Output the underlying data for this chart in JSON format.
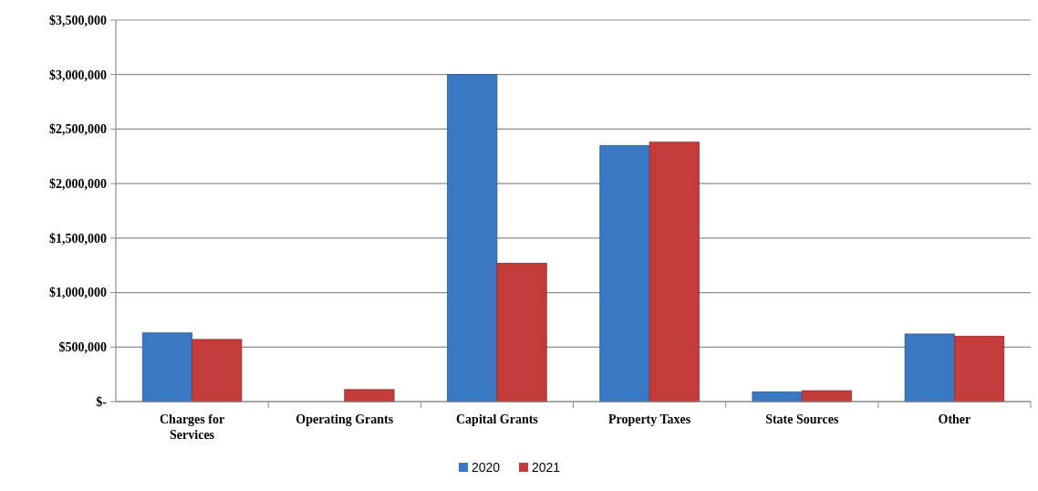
{
  "chart_data": {
    "type": "bar",
    "categories": [
      "Charges for Services",
      "Operating Grants",
      "Capital Grants",
      "Property Taxes",
      "State Sources",
      "Other"
    ],
    "series": [
      {
        "name": "2020",
        "color": "#3b78c4",
        "values": [
          630000,
          0,
          3000000,
          2350000,
          90000,
          620000
        ]
      },
      {
        "name": "2021",
        "color": "#c43c3a",
        "values": [
          570000,
          110000,
          1270000,
          2380000,
          100000,
          600000
        ]
      }
    ],
    "ylim": [
      0,
      3500000
    ],
    "yticks": [
      {
        "value": 0,
        "label": "$-"
      },
      {
        "value": 500000,
        "label": "$500,000"
      },
      {
        "value": 1000000,
        "label": "$1,000,000"
      },
      {
        "value": 1500000,
        "label": "$1,500,000"
      },
      {
        "value": 2000000,
        "label": "$2,000,000"
      },
      {
        "value": 2500000,
        "label": "$2,500,000"
      },
      {
        "value": 3000000,
        "label": "$3,000,000"
      },
      {
        "value": 3500000,
        "label": "$3,500,000"
      }
    ],
    "grid": "y",
    "legend": "bottom"
  }
}
